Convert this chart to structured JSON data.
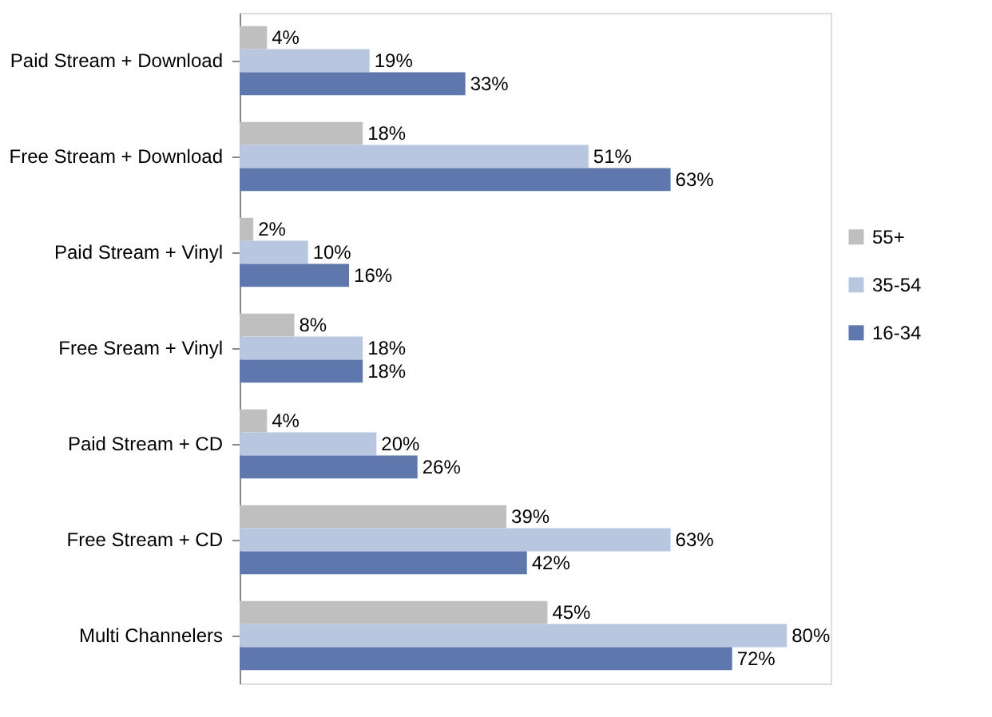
{
  "chart_data": {
    "type": "bar",
    "orientation": "horizontal",
    "categories": [
      "Paid Stream + Download",
      "Free Stream + Download",
      "Paid Stream + Vinyl",
      "Free Sream + Vinyl",
      "Paid Stream + CD",
      "Free Stream + CD",
      "Multi Channelers"
    ],
    "series": [
      {
        "name": "55+",
        "color": "#bfbfbf",
        "values": [
          4,
          18,
          2,
          8,
          4,
          39,
          45
        ],
        "value_labels": [
          "4%",
          "18%",
          "2%",
          "8%",
          "4%",
          "39%",
          "45%"
        ]
      },
      {
        "name": "35-54",
        "color": "#b9c6df",
        "values": [
          19,
          51,
          10,
          18,
          20,
          63,
          80
        ],
        "value_labels": [
          "19%",
          "51%",
          "10%",
          "18%",
          "20%",
          "63%",
          "80%"
        ]
      },
      {
        "name": "16-34",
        "color": "#5e78ad",
        "values": [
          33,
          63,
          16,
          18,
          26,
          42,
          72
        ],
        "value_labels": [
          "33%",
          "63%",
          "16%",
          "18%",
          "26%",
          "42%",
          "72%"
        ]
      }
    ],
    "legend": "right",
    "grid": false
  }
}
